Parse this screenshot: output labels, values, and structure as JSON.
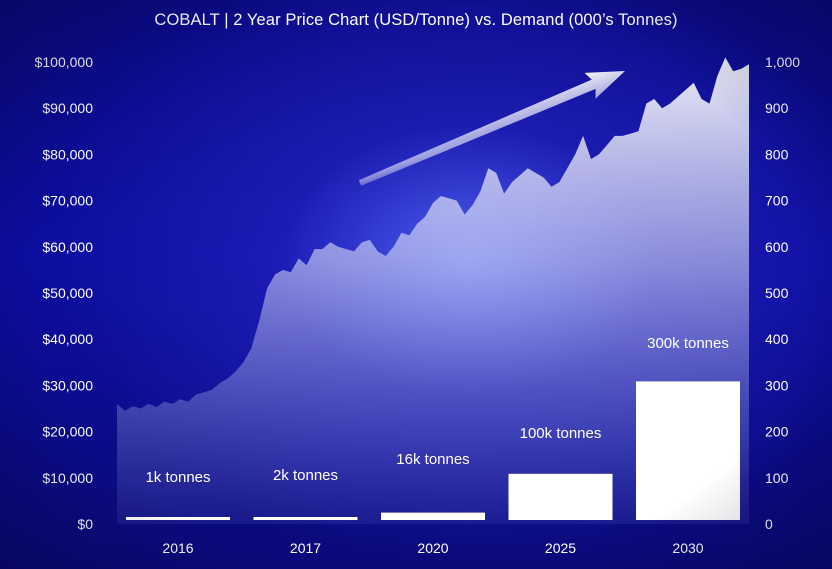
{
  "title": "COBALT  |  2 Year Price Chart (USD/Tonne)  vs. Demand (000’s Tonnes)",
  "chart_data": [
    {
      "type": "area",
      "series_role": "price",
      "y_axis": "left",
      "ylim": [
        0,
        100000
      ],
      "y_ticks": [
        "$0",
        "$10,000",
        "$20,000",
        "$30,000",
        "$40,000",
        "$50,000",
        "$60,000",
        "$70,000",
        "$80,000",
        "$90,000",
        "$100,000"
      ],
      "y_tick_values": [
        0,
        10000,
        20000,
        30000,
        40000,
        50000,
        60000,
        70000,
        80000,
        90000,
        100000
      ],
      "x_range": [
        0,
        100
      ],
      "values": [
        [
          0,
          26000
        ],
        [
          1,
          24500
        ],
        [
          2,
          25500
        ],
        [
          3,
          25000
        ],
        [
          4,
          26000
        ],
        [
          5,
          25300
        ],
        [
          6,
          26500
        ],
        [
          7,
          26000
        ],
        [
          8,
          27000
        ],
        [
          9,
          26500
        ],
        [
          10,
          28000
        ],
        [
          11,
          28500
        ],
        [
          12,
          29000
        ],
        [
          13,
          30500
        ],
        [
          14,
          31500
        ],
        [
          15,
          33000
        ],
        [
          16,
          35000
        ],
        [
          17,
          38000
        ],
        [
          18,
          44000
        ],
        [
          19,
          51000
        ],
        [
          20,
          54000
        ],
        [
          21,
          55000
        ],
        [
          22,
          54500
        ],
        [
          23,
          57500
        ],
        [
          24,
          56000
        ],
        [
          25,
          59500
        ],
        [
          26,
          59500
        ],
        [
          27,
          61000
        ],
        [
          28,
          60000
        ],
        [
          29,
          59500
        ],
        [
          30,
          59000
        ],
        [
          31,
          61000
        ],
        [
          32,
          61500
        ],
        [
          33,
          59000
        ],
        [
          34,
          58000
        ],
        [
          35,
          60000
        ],
        [
          36,
          63000
        ],
        [
          37,
          62500
        ],
        [
          38,
          65000
        ],
        [
          39,
          66500
        ],
        [
          40,
          69500
        ],
        [
          41,
          71000
        ],
        [
          42,
          70500
        ],
        [
          43,
          70000
        ],
        [
          44,
          67000
        ],
        [
          45,
          69000
        ],
        [
          46,
          72000
        ],
        [
          47,
          77000
        ],
        [
          48,
          76000
        ],
        [
          49,
          71500
        ],
        [
          50,
          74000
        ],
        [
          51,
          75500
        ],
        [
          52,
          77000
        ],
        [
          53,
          76000
        ],
        [
          54,
          75000
        ],
        [
          55,
          73000
        ],
        [
          56,
          74000
        ],
        [
          57,
          77000
        ],
        [
          58,
          80000
        ],
        [
          59,
          84000
        ],
        [
          60,
          79000
        ],
        [
          61,
          80000
        ],
        [
          62,
          82000
        ],
        [
          63,
          84000
        ],
        [
          64,
          84000
        ],
        [
          65,
          84500
        ],
        [
          66,
          85000
        ],
        [
          67,
          91000
        ],
        [
          68,
          92000
        ],
        [
          69,
          90000
        ],
        [
          70,
          91000
        ],
        [
          71,
          92500
        ],
        [
          72,
          94000
        ],
        [
          73,
          95500
        ],
        [
          74,
          92000
        ],
        [
          75,
          91000
        ],
        [
          76,
          97000
        ],
        [
          77,
          101000
        ],
        [
          78,
          98000
        ],
        [
          79,
          98500
        ],
        [
          80,
          99500
        ]
      ]
    },
    {
      "type": "bar",
      "series_role": "demand",
      "y_axis": "right",
      "ylim": [
        0,
        1000
      ],
      "y_ticks": [
        "0",
        "100",
        "200",
        "300",
        "400",
        "500",
        "600",
        "700",
        "800",
        "900",
        "1,000"
      ],
      "y_tick_values": [
        0,
        100,
        200,
        300,
        400,
        500,
        600,
        700,
        800,
        900,
        1000
      ],
      "categories": [
        "2016",
        "2017",
        "2020",
        "2025",
        "2030"
      ],
      "values": [
        1,
        2,
        16,
        100,
        300
      ],
      "data_labels": [
        "1k tonnes",
        "2k tonnes",
        "16k tonnes",
        "100k tonnes",
        "300k tonnes"
      ],
      "annotation": "upward trend arrow"
    }
  ],
  "colors": {
    "area_top": "#ffffff",
    "bars": "#ffffff",
    "text": "#ffffff",
    "background": "#0d0da0"
  }
}
